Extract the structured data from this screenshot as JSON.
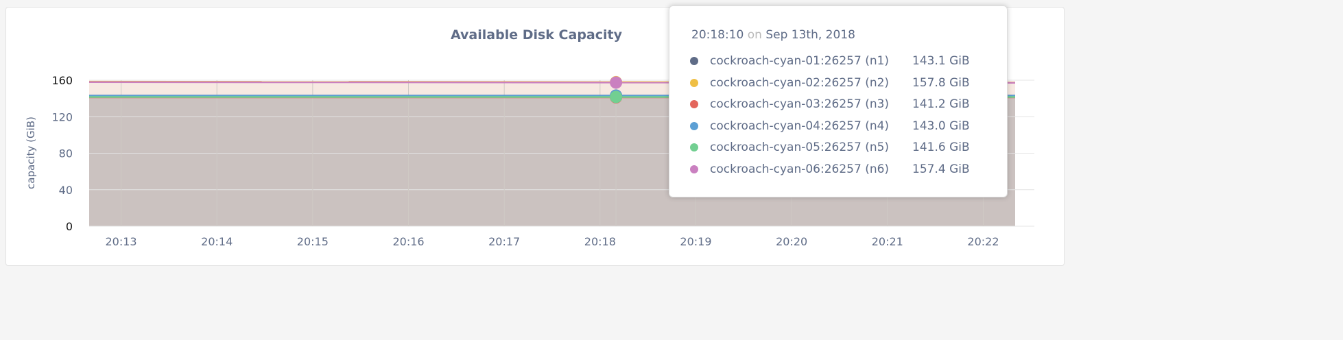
{
  "chart_data": {
    "type": "area",
    "title": "Available Disk Capacity",
    "ylabel": "capacity (GiB)",
    "ylim": [
      0,
      160
    ],
    "yticks": [
      "0",
      "40",
      "80",
      "120",
      "160"
    ],
    "xlim": [
      "20:12:40",
      "20:22:20"
    ],
    "xticks": [
      "20:13",
      "20:14",
      "20:15",
      "20:16",
      "20:17",
      "20:18",
      "20:19",
      "20:20",
      "20:21",
      "20:22"
    ],
    "grid": true,
    "series": [
      {
        "name": "cockroach-cyan-01:26257 (n1)",
        "color": "#5f6c87",
        "value_label": "143.1 GiB",
        "y": [
          143.1,
          143.1
        ]
      },
      {
        "name": "cockroach-cyan-02:26257 (n2)",
        "color": "#efbf45",
        "value_label": "157.8 GiB",
        "y": [
          158.4,
          157.6
        ]
      },
      {
        "name": "cockroach-cyan-03:26257 (n3)",
        "color": "#e3665c",
        "value_label": "141.2 GiB",
        "y": [
          141.2,
          141.2
        ]
      },
      {
        "name": "cockroach-cyan-04:26257 (n4)",
        "color": "#5c9fd4",
        "value_label": "143.0 GiB",
        "y": [
          143.0,
          143.0
        ]
      },
      {
        "name": "cockroach-cyan-05:26257 (n5)",
        "color": "#72cf91",
        "value_label": "141.6 GiB",
        "y": [
          141.6,
          141.6
        ]
      },
      {
        "name": "cockroach-cyan-06:26257 (n6)",
        "color": "#ca80c0",
        "value_label": "157.4 GiB",
        "y": [
          157.9,
          157.2
        ]
      }
    ],
    "tooltip": {
      "time": "20:18:10",
      "on": "on",
      "date": "Sep 13th, 2018"
    }
  }
}
